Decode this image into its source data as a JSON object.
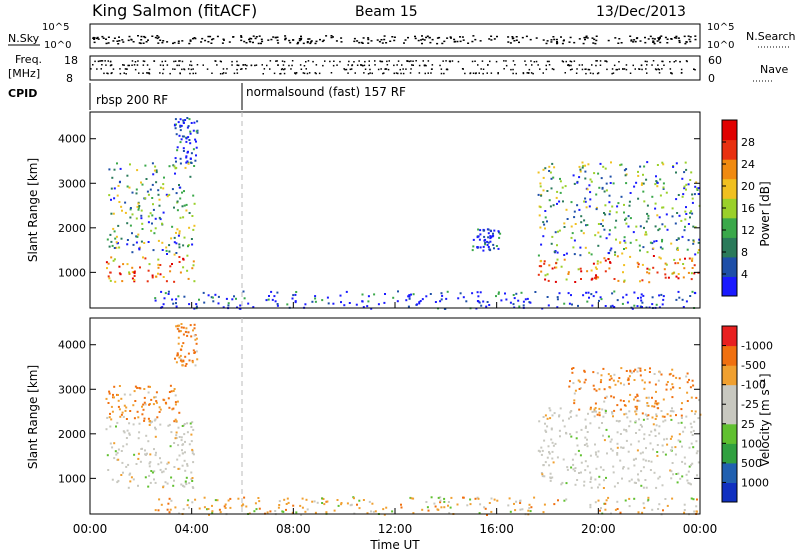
{
  "header": {
    "station": "King Salmon (fitACF)",
    "beam": "Beam 15",
    "date": "13/Dec/2013"
  },
  "top_panels": {
    "nsky_label": "N.Sky",
    "nsky_ticks": [
      "10^5",
      "10^0"
    ],
    "nsearch_label": "N.Search",
    "nsearch_ticks": [
      "10^5",
      "10^0"
    ],
    "freq_label_1": "Freq.",
    "freq_label_2": "[MHz]",
    "freq_ticks": [
      "18",
      "8"
    ],
    "nave_label": "Nave",
    "nave_ticks": [
      "60",
      "0"
    ],
    "cpid_label": "CPID",
    "cpid_segments": [
      {
        "label": "rbsp 200 RF",
        "start_hour": 0
      },
      {
        "label": "normalsound (fast) 157 RF",
        "start_hour": 6
      }
    ]
  },
  "chart_data": [
    {
      "type": "heatmap",
      "quantity": "power",
      "xlabel": "",
      "ylabel": "Slant Range [km]",
      "xlim": [
        0,
        24
      ],
      "ylim": [
        200,
        4600
      ],
      "yticks": [
        "1000",
        "2000",
        "3000",
        "4000"
      ],
      "colorbar_label": "Power [dB]",
      "colorbar_ticks": [
        "4",
        "8",
        "12",
        "16",
        "20",
        "24",
        "28"
      ],
      "colorbar_colors": [
        "#1a1aff",
        "#1e4fa8",
        "#2a7a5a",
        "#3aa84a",
        "#9ad02a",
        "#f0c020",
        "#f08a10",
        "#e83010",
        "#e00000"
      ],
      "regions": [
        {
          "t0": 0.6,
          "t1": 4.1,
          "r0": 800,
          "r1": 3500,
          "level": "mixed"
        },
        {
          "t0": 3.3,
          "t1": 4.2,
          "r0": 3500,
          "r1": 4500,
          "level": "low"
        },
        {
          "t0": 2.5,
          "t1": 23.9,
          "r0": 200,
          "r1": 600,
          "level": "low"
        },
        {
          "t0": 15,
          "t1": 16.1,
          "r0": 1500,
          "r1": 2000,
          "level": "low"
        },
        {
          "t0": 17.6,
          "t1": 24,
          "r0": 800,
          "r1": 3500,
          "level": "mixed"
        }
      ]
    },
    {
      "type": "heatmap",
      "quantity": "velocity",
      "xlabel": "Time UT",
      "ylabel": "Slant Range [km]",
      "xlim": [
        0,
        24
      ],
      "ylim": [
        200,
        4600
      ],
      "xticks": [
        "00:00",
        "04:00",
        "08:00",
        "12:00",
        "16:00",
        "20:00",
        "00:00"
      ],
      "yticks": [
        "1000",
        "2000",
        "3000",
        "4000"
      ],
      "colorbar_label": "Velocity [m s⁻¹]",
      "colorbar_ticks": [
        "1000",
        "500",
        "100",
        "25",
        "-25",
        "-100",
        "-500",
        "-1000"
      ],
      "colorbar_colors": [
        "#1030c0",
        "#2060b0",
        "#30a040",
        "#60c030",
        "#c8c8c0",
        "#c8c8c0",
        "#f0a030",
        "#f07010",
        "#e82020"
      ],
      "regions": [
        {
          "t0": 0.6,
          "t1": 4.1,
          "r0": 800,
          "r1": 2300,
          "level": "ground"
        },
        {
          "t0": 0.6,
          "t1": 3.5,
          "r0": 2300,
          "r1": 3100,
          "level": "negative"
        },
        {
          "t0": 3.3,
          "t1": 4.2,
          "r0": 3500,
          "r1": 4500,
          "level": "negative"
        },
        {
          "t0": 2.5,
          "t1": 23.9,
          "r0": 200,
          "r1": 600,
          "level": "mixed"
        },
        {
          "t0": 17.6,
          "t1": 24,
          "r0": 800,
          "r1": 2600,
          "level": "ground"
        },
        {
          "t0": 18.8,
          "t1": 24,
          "r0": 2400,
          "r1": 3500,
          "level": "negative"
        }
      ]
    }
  ]
}
